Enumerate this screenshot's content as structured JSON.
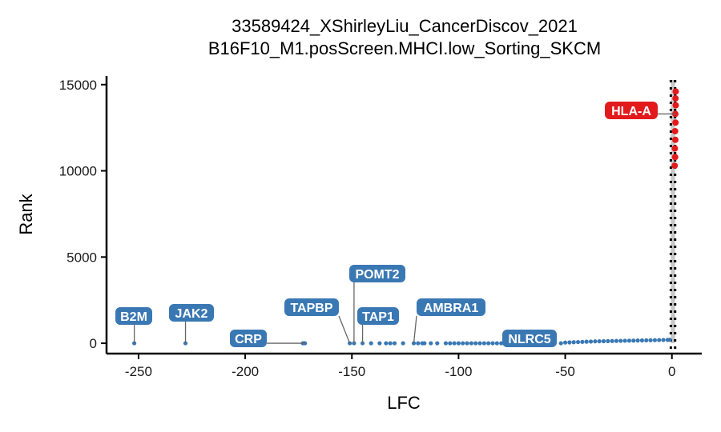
{
  "chart_data": {
    "type": "scatter",
    "title": "33589424_XShirleyLiu_CancerDiscov_2021",
    "subtitle": "B16F10_M1.posScreen.MHCI.low_Sorting_SKCM",
    "xlabel": "LFC",
    "ylabel": "Rank",
    "xlim": [
      -265,
      14
    ],
    "ylim": [
      -600,
      15500
    ],
    "x_ticks": [
      -250,
      -200,
      -150,
      -100,
      -50,
      0
    ],
    "x_tick_labels": [
      "-250",
      "-200",
      "-150",
      "-100",
      "-50",
      "0"
    ],
    "y_ticks": [
      0,
      5000,
      10000,
      15000
    ],
    "y_tick_labels": [
      "0",
      "5000",
      "10000",
      "15000"
    ],
    "grid": false,
    "legend": "none",
    "colors": {
      "negative": "#3a78b4",
      "positive": "#e31a1c",
      "label_negative": "#3a78b4",
      "label_positive": "#e31a1c",
      "cutoff_band": "#c8c8c8",
      "cutoff_line": "#000000"
    },
    "cutoff_lines_x": [
      -0.5,
      1.5
    ],
    "series": [
      {
        "values": [
          [
            -252,
            0
          ],
          [
            -228,
            0
          ],
          [
            -173,
            0
          ],
          [
            -172.5,
            0
          ],
          [
            -172,
            0
          ],
          [
            -151,
            0
          ],
          [
            -149,
            0
          ],
          [
            -145,
            0
          ],
          [
            -141,
            0
          ],
          [
            -137,
            0
          ],
          [
            -134,
            0
          ],
          [
            -132,
            0
          ],
          [
            -130,
            0
          ],
          [
            -126,
            0
          ],
          [
            -121,
            0
          ],
          [
            -119,
            0
          ],
          [
            -117,
            0
          ],
          [
            -116,
            0
          ],
          [
            -113,
            0
          ],
          [
            -110,
            0
          ],
          [
            -106,
            0
          ],
          [
            -104,
            0
          ],
          [
            -102,
            0
          ],
          [
            -100,
            0
          ],
          [
            -98,
            0
          ],
          [
            -96,
            0
          ],
          [
            -94,
            0
          ],
          [
            -92,
            0
          ],
          [
            -90,
            0
          ],
          [
            -88,
            0
          ],
          [
            -86,
            0
          ],
          [
            -84,
            0
          ],
          [
            -82,
            0
          ],
          [
            -80,
            0
          ],
          [
            -78,
            0
          ],
          [
            -76,
            0
          ],
          [
            -74,
            0
          ],
          [
            -70,
            0
          ],
          [
            -67,
            0
          ],
          [
            -64,
            0
          ],
          [
            -61,
            0
          ],
          [
            -58,
            0
          ],
          [
            -55,
            0
          ],
          [
            -52,
            0
          ],
          [
            -50,
            40
          ],
          [
            -48,
            50
          ],
          [
            -46,
            60
          ],
          [
            -44,
            70
          ],
          [
            -42,
            80
          ],
          [
            -40,
            90
          ],
          [
            -38,
            100
          ],
          [
            -36,
            110
          ],
          [
            -34,
            115
          ],
          [
            -32,
            120
          ],
          [
            -30,
            125
          ],
          [
            -28,
            130
          ],
          [
            -26,
            135
          ],
          [
            -24,
            140
          ],
          [
            -22,
            145
          ],
          [
            -20,
            150
          ],
          [
            -18,
            155
          ],
          [
            -16,
            160
          ],
          [
            -14,
            165
          ],
          [
            -12,
            170
          ],
          [
            -10,
            175
          ],
          [
            -8,
            180
          ],
          [
            -6,
            185
          ],
          [
            -4,
            190
          ],
          [
            -2,
            195
          ],
          [
            -1,
            200
          ]
        ]
      },
      {
        "values": [
          [
            1.3,
            10300
          ],
          [
            1.5,
            10800
          ],
          [
            1.4,
            11300
          ],
          [
            1.6,
            11800
          ],
          [
            1.5,
            12300
          ],
          [
            1.7,
            12800
          ],
          [
            1.6,
            13300
          ],
          [
            1.8,
            13800
          ],
          [
            1.7,
            14200
          ],
          [
            1.8,
            14600
          ]
        ]
      }
    ],
    "labels": [
      {
        "text": "B2M",
        "x": -252,
        "y": 0,
        "color": "negative"
      },
      {
        "text": "JAK2",
        "x": -228,
        "y": 0,
        "color": "negative"
      },
      {
        "text": "CRP",
        "x": -172,
        "y": 0,
        "color": "negative"
      },
      {
        "text": "TAPBP",
        "x": -151,
        "y": 0,
        "color": "negative"
      },
      {
        "text": "POMT2",
        "x": -149,
        "y": 0,
        "color": "negative"
      },
      {
        "text": "TAP1",
        "x": -145,
        "y": 0,
        "color": "negative"
      },
      {
        "text": "AMBRA1",
        "x": -121,
        "y": 0,
        "color": "negative"
      },
      {
        "text": "NLRC5",
        "x": -66,
        "y": 0,
        "color": "negative"
      },
      {
        "text": "HLA-A",
        "x": 1.7,
        "y": 13300,
        "color": "positive"
      }
    ]
  }
}
